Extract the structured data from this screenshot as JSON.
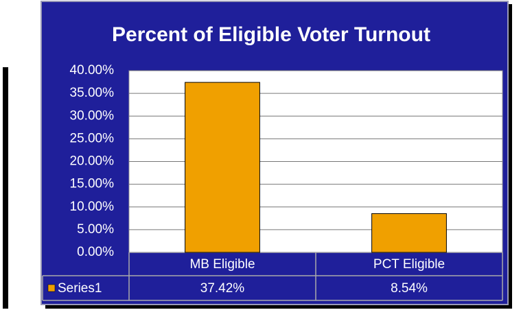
{
  "chart_data": {
    "type": "bar",
    "title": "Percent of Eligible Voter Turnout",
    "categories": [
      "MB Eligible",
      "PCT Eligible"
    ],
    "series": [
      {
        "name": "Series1",
        "color": "#f0a000",
        "values": [
          37.42,
          8.54
        ],
        "value_labels": [
          "37.42%",
          "8.54%"
        ]
      }
    ],
    "ylim": [
      0,
      40
    ],
    "yticks": [
      {
        "value": 0,
        "label": "0.00%"
      },
      {
        "value": 5,
        "label": "5.00%"
      },
      {
        "value": 10,
        "label": "10.00%"
      },
      {
        "value": 15,
        "label": "15.00%"
      },
      {
        "value": 20,
        "label": "20.00%"
      },
      {
        "value": 25,
        "label": "25.00%"
      },
      {
        "value": 30,
        "label": "30.00%"
      },
      {
        "value": 35,
        "label": "35.00%"
      },
      {
        "value": 40,
        "label": "40.00%"
      }
    ],
    "grid": true
  }
}
